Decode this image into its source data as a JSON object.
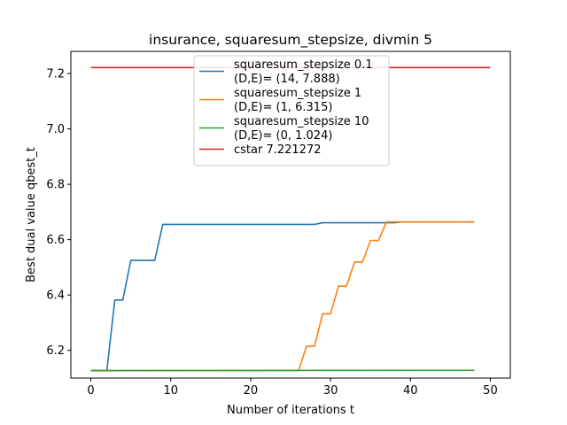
{
  "chart_data": {
    "type": "line",
    "title": "insurance, squaresum_stepsize, divmin 5",
    "xlabel": "Number of iterations t",
    "ylabel": "Best dual value qbest_t",
    "xlim": [
      -2.5,
      52.5
    ],
    "ylim": [
      6.1,
      7.28
    ],
    "xticks": [
      0,
      10,
      20,
      30,
      40,
      50
    ],
    "yticks": [
      6.2,
      6.4,
      6.6,
      6.8,
      7.0,
      7.2
    ],
    "xtick_labels": [
      "0",
      "10",
      "20",
      "30",
      "40",
      "50"
    ],
    "ytick_labels": [
      "6.2",
      "6.4",
      "6.6",
      "6.8",
      "7.0",
      "7.2"
    ],
    "grid": false,
    "legend_position": "top-center",
    "series": [
      {
        "name": "squaresum_stepsize 0.1\n(D,E)= (14, 7.888)",
        "color": "#1f77b4",
        "x": [
          0,
          1,
          2,
          3,
          4,
          5,
          6,
          7,
          8,
          9,
          10,
          11,
          12,
          13,
          14,
          15,
          16,
          17,
          18,
          19,
          20,
          21,
          22,
          23,
          24,
          25,
          26,
          27,
          28,
          29,
          30,
          31,
          32,
          33,
          34,
          35,
          36,
          37,
          38,
          39,
          40,
          41,
          42,
          43,
          44,
          45,
          46,
          47,
          48
        ],
        "y": [
          6.127,
          6.127,
          6.127,
          6.382,
          6.382,
          6.525,
          6.525,
          6.525,
          6.525,
          6.655,
          6.655,
          6.655,
          6.655,
          6.655,
          6.655,
          6.655,
          6.655,
          6.655,
          6.655,
          6.655,
          6.655,
          6.655,
          6.655,
          6.655,
          6.655,
          6.655,
          6.655,
          6.655,
          6.655,
          6.661,
          6.661,
          6.661,
          6.661,
          6.661,
          6.661,
          6.661,
          6.661,
          6.661,
          6.661,
          6.664,
          6.664,
          6.664,
          6.664,
          6.664,
          6.664,
          6.664,
          6.664,
          6.664,
          6.664
        ]
      },
      {
        "name": "squaresum_stepsize 1\n(D,E)= (1, 6.315)",
        "color": "#ff7f0e",
        "x": [
          0,
          1,
          2,
          3,
          4,
          5,
          6,
          7,
          8,
          9,
          10,
          11,
          12,
          13,
          14,
          15,
          16,
          17,
          18,
          19,
          20,
          21,
          22,
          23,
          24,
          25,
          26,
          27,
          28,
          29,
          30,
          31,
          32,
          33,
          34,
          35,
          36,
          37,
          38,
          39,
          40,
          41,
          42,
          43,
          44,
          45,
          46,
          47,
          48
        ],
        "y": [
          6.127,
          6.127,
          6.127,
          6.127,
          6.127,
          6.127,
          6.127,
          6.127,
          6.127,
          6.127,
          6.127,
          6.127,
          6.127,
          6.127,
          6.127,
          6.127,
          6.127,
          6.127,
          6.127,
          6.127,
          6.127,
          6.127,
          6.127,
          6.127,
          6.127,
          6.127,
          6.127,
          6.215,
          6.215,
          6.332,
          6.332,
          6.432,
          6.432,
          6.519,
          6.519,
          6.597,
          6.597,
          6.664,
          6.664,
          6.664,
          6.664,
          6.664,
          6.664,
          6.664,
          6.664,
          6.664,
          6.664,
          6.664,
          6.664
        ]
      },
      {
        "name": "squaresum_stepsize 10\n(D,E)= (0, 1.024)",
        "color": "#2ca02c",
        "x": [
          0,
          48
        ],
        "y": [
          6.127,
          6.128
        ]
      },
      {
        "name": "cstar 7.221272",
        "color": "#d62728",
        "x": [
          0,
          50
        ],
        "y": [
          7.221272,
          7.221272
        ]
      }
    ]
  }
}
